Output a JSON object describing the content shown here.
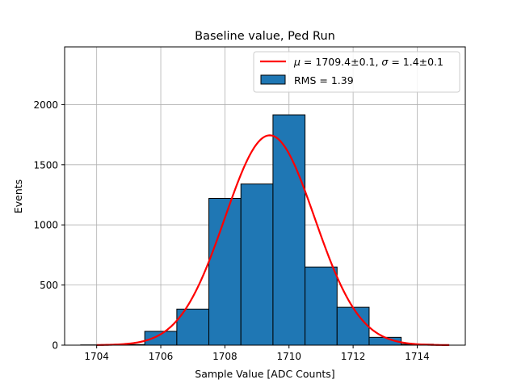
{
  "chart_data": {
    "type": "bar",
    "title": "Baseline value, Ped Run",
    "xlabel": "Sample Value [ADC Counts]",
    "ylabel": "Events",
    "xlim": [
      1703.0,
      1715.5
    ],
    "ylim": [
      0,
      2480
    ],
    "xticks": [
      1704,
      1706,
      1708,
      1710,
      1712,
      1714
    ],
    "yticks": [
      0,
      500,
      1000,
      1500,
      2000
    ],
    "grid": true,
    "legend_position": "top-right",
    "histogram": {
      "name": "RMS = 1.39",
      "color": "#1f77b4",
      "edge_color": "#000000",
      "bins": [
        {
          "left": 1703.5,
          "right": 1704.5,
          "value": 2
        },
        {
          "left": 1704.5,
          "right": 1705.5,
          "value": 5
        },
        {
          "left": 1705.5,
          "right": 1706.5,
          "value": 115
        },
        {
          "left": 1706.5,
          "right": 1707.5,
          "value": 300
        },
        {
          "left": 1707.5,
          "right": 1708.5,
          "value": 1220
        },
        {
          "left": 1708.5,
          "right": 1709.5,
          "value": 1340
        },
        {
          "left": 1709.5,
          "right": 1710.5,
          "value": 1915
        },
        {
          "left": 1710.5,
          "right": 1711.5,
          "value": 650
        },
        {
          "left": 1711.5,
          "right": 1712.5,
          "value": 315
        },
        {
          "left": 1712.5,
          "right": 1713.5,
          "value": 65
        },
        {
          "left": 1713.5,
          "right": 1714.5,
          "value": 8
        }
      ]
    },
    "fit": {
      "name_prefix_mu": "μ",
      "name_mid": " = 1709.4±0.1, ",
      "name_prefix_sigma": "σ",
      "name_suffix": " = 1.4±0.1",
      "color": "#ff0000",
      "mean": 1709.4,
      "sigma": 1.4,
      "amplitude": 1745,
      "x_range": [
        1704.0,
        1715.0
      ]
    }
  }
}
